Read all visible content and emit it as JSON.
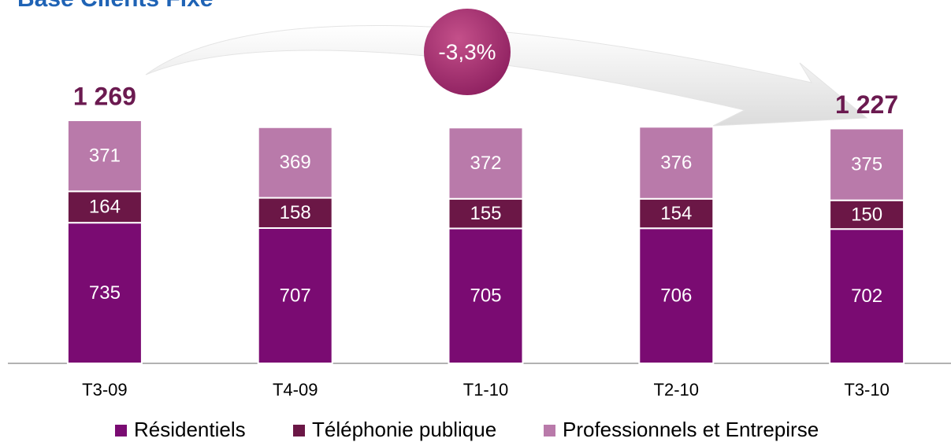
{
  "chart_data": {
    "type": "stacked_bar",
    "title": "Base Clients Fixe",
    "categories": [
      "T3-09",
      "T4-09",
      "T1-10",
      "T2-10",
      "T3-10"
    ],
    "series": [
      {
        "name": "Résidentiels",
        "color": "#7a0b72",
        "values": [
          735,
          707,
          705,
          706,
          702
        ]
      },
      {
        "name": "Téléphonie publique",
        "color": "#6b1746",
        "values": [
          164,
          158,
          155,
          154,
          150
        ]
      },
      {
        "name": "Professionnels et Entrepirse",
        "color": "#b97aaa",
        "values": [
          371,
          369,
          372,
          376,
          375
        ]
      }
    ],
    "total_labels": [
      "1 269",
      null,
      null,
      null,
      "1 227"
    ],
    "annotation": "-3,3%",
    "ylim": [
      0,
      1300
    ]
  }
}
